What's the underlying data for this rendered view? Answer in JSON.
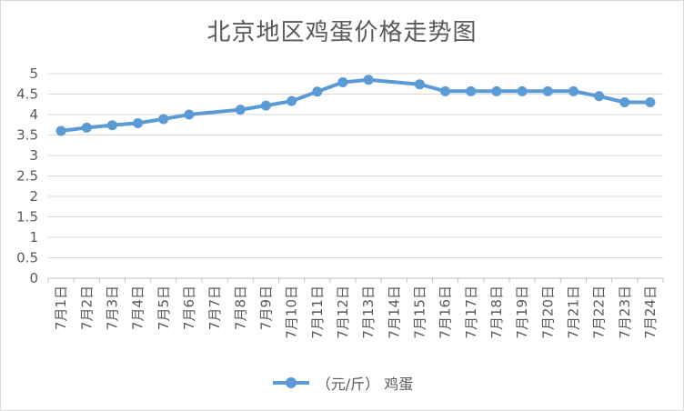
{
  "chart_data": {
    "type": "line",
    "title": "北京地区鸡蛋价格走势图",
    "xlabel": "",
    "ylabel": "",
    "ylim": [
      0,
      5
    ],
    "yticks": [
      "0",
      "0.5",
      "1",
      "1.5",
      "2",
      "2.5",
      "3",
      "3.5",
      "4",
      "4.5",
      "5"
    ],
    "categories": [
      "7月1日",
      "7月2日",
      "7月3日",
      "7月4日",
      "7月5日",
      "7月6日",
      "7月7日",
      "7月8日",
      "7月9日",
      "7月10日",
      "7月11日",
      "7月12日",
      "7月13日",
      "7月14日",
      "7月15日",
      "7月16日",
      "7月17日",
      "7月18日",
      "7月19日",
      "7月20日",
      "7月21日",
      "7月22日",
      "7月23日",
      "7月24日"
    ],
    "grid": true,
    "legend_position": "bottom",
    "series": [
      {
        "name": "（元/斤） 鸡蛋",
        "color": "#5b9bd5",
        "values": [
          3.6,
          3.68,
          3.74,
          3.79,
          3.89,
          4.0,
          null,
          4.12,
          4.22,
          4.33,
          4.56,
          4.79,
          4.85,
          null,
          4.74,
          4.57,
          4.57,
          4.57,
          4.57,
          4.57,
          4.57,
          4.45,
          4.3,
          4.3
        ]
      }
    ]
  }
}
